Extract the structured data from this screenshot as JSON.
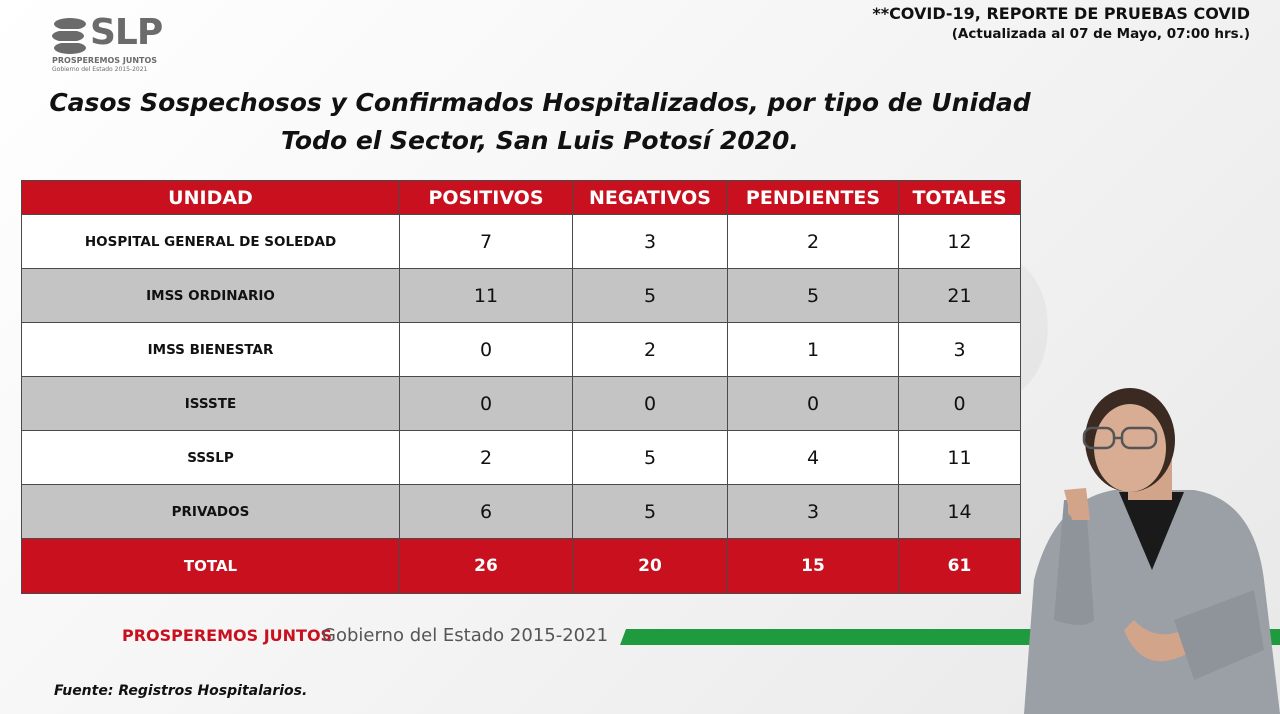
{
  "logo": {
    "text": "SLP",
    "tagline": "PROSPEREMOS JUNTOS",
    "subtitle": "Gobierno del Estado 2015-2021"
  },
  "report": {
    "title": "**COVID-19, REPORTE DE PRUEBAS COVID",
    "updated": "(Actualizada al 07 de Mayo, 07:00 hrs.)"
  },
  "main_title": {
    "line1": "Casos Sospechosos y Confirmados Hospitalizados, por tipo de Unidad",
    "line2": "Todo el Sector, San Luis Potosí 2020."
  },
  "chart_data": {
    "type": "table",
    "columns": [
      "UNIDAD",
      "POSITIVOS",
      "NEGATIVOS",
      "PENDIENTES",
      "TOTALES"
    ],
    "rows": [
      {
        "unidad": "HOSPITAL GENERAL DE SOLEDAD",
        "positivos": "7",
        "negativos": "3",
        "pendientes": "2",
        "totales": "12"
      },
      {
        "unidad": "IMSS ORDINARIO",
        "positivos": "11",
        "negativos": "5",
        "pendientes": "5",
        "totales": "21"
      },
      {
        "unidad": "IMSS BIENESTAR",
        "positivos": "0",
        "negativos": "2",
        "pendientes": "1",
        "totales": "3"
      },
      {
        "unidad": "ISSSTE",
        "positivos": "0",
        "negativos": "0",
        "pendientes": "0",
        "totales": "0"
      },
      {
        "unidad": "SSSLP",
        "positivos": "2",
        "negativos": "5",
        "pendientes": "4",
        "totales": "11"
      },
      {
        "unidad": "PRIVADOS",
        "positivos": "6",
        "negativos": "5",
        "pendientes": "3",
        "totales": "14"
      }
    ],
    "total": {
      "unidad": "TOTAL",
      "positivos": "26",
      "negativos": "20",
      "pendientes": "15",
      "totales": "61"
    }
  },
  "footer": {
    "slogan": "PROSPEREMOS JUNTOS",
    "government": "Gobierno del Estado 2015-2021",
    "source": "Fuente: Registros Hospitalarios."
  },
  "colors": {
    "header_red": "#c8101e",
    "row_gray": "#c4c4c4",
    "footer_green": "#1f9a3f"
  }
}
